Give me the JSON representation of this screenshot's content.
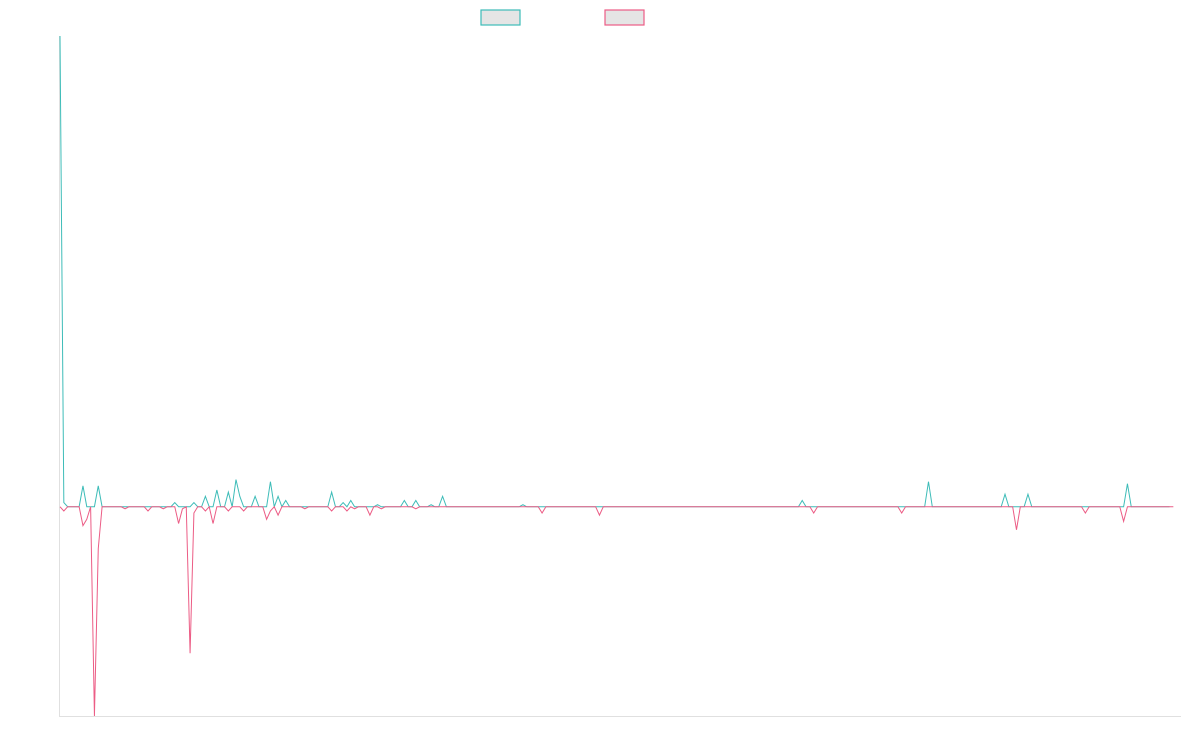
{
  "chart_data": {
    "type": "line",
    "title": "",
    "xlabel": "",
    "ylabel": "",
    "legend": "top-center",
    "grid": false,
    "xlim": [
      0,
      293
    ],
    "ylim": [
      -100,
      225
    ],
    "series": [
      {
        "name": "",
        "color": "#3dbcb8",
        "values": [
          225,
          2,
          0,
          0,
          0,
          0,
          10,
          0,
          0,
          0,
          10,
          0,
          0,
          0,
          0,
          0,
          0,
          0,
          0,
          0,
          0,
          0,
          0,
          0,
          0,
          0,
          0,
          0,
          0,
          0,
          2,
          0,
          0,
          0,
          0,
          2,
          0,
          0,
          5,
          0,
          0,
          8,
          0,
          0,
          7,
          0,
          13,
          5,
          0,
          0,
          0,
          5,
          0,
          0,
          0,
          12,
          0,
          5,
          0,
          3,
          0,
          0,
          0,
          0,
          0,
          0,
          0,
          0,
          0,
          0,
          0,
          7,
          0,
          0,
          2,
          0,
          3,
          0,
          0,
          0,
          0,
          0,
          0,
          1,
          0,
          0,
          0,
          0,
          0,
          0,
          3,
          0,
          0,
          3,
          0,
          0,
          0,
          1,
          0,
          0,
          5,
          0,
          0,
          0,
          0,
          0,
          0,
          0,
          0,
          0,
          0,
          0,
          0,
          0,
          0,
          0,
          0,
          0,
          0,
          0,
          0,
          1,
          0,
          0,
          0,
          0,
          0,
          0,
          0,
          0,
          0,
          0,
          0,
          0,
          0,
          0,
          0,
          0,
          0,
          0,
          0,
          0,
          0,
          0,
          0,
          0,
          0,
          0,
          0,
          0,
          0,
          0,
          0,
          0,
          0,
          0,
          0,
          0,
          0,
          0,
          0,
          0,
          0,
          0,
          0,
          0,
          0,
          0,
          0,
          0,
          0,
          0,
          0,
          0,
          0,
          0,
          0,
          0,
          0,
          0,
          0,
          0,
          0,
          0,
          0,
          0,
          0,
          0,
          0,
          0,
          0,
          0,
          0,
          0,
          3,
          0,
          0,
          0,
          0,
          0,
          0,
          0,
          0,
          0,
          0,
          0,
          0,
          0,
          0,
          0,
          0,
          0,
          0,
          0,
          0,
          0,
          0,
          0,
          0,
          0,
          0,
          0,
          0,
          0,
          0,
          0,
          0,
          12,
          0,
          0,
          0,
          0,
          0,
          0,
          0,
          0,
          0,
          0,
          0,
          0,
          0,
          0,
          0,
          0,
          0,
          0,
          0,
          6,
          0,
          0,
          0,
          0,
          0,
          6,
          0,
          0,
          0,
          0,
          0,
          0,
          0,
          0,
          0,
          0,
          0,
          0,
          0,
          0,
          0,
          0,
          0,
          0,
          0,
          0,
          0,
          0,
          0,
          0,
          0,
          11,
          0,
          0,
          0,
          0,
          0,
          0,
          0,
          0,
          0,
          0,
          0
        ]
      },
      {
        "name": "",
        "color": "#ec5c85",
        "values": [
          0,
          -2,
          0,
          0,
          0,
          0,
          -9,
          -6,
          0,
          -100,
          -20,
          0,
          0,
          0,
          0,
          0,
          0,
          -1,
          0,
          0,
          0,
          0,
          0,
          -2,
          0,
          0,
          0,
          -1,
          0,
          0,
          0,
          -8,
          -1,
          0,
          -70,
          -3,
          0,
          0,
          -2,
          0,
          -8,
          0,
          0,
          0,
          -2,
          0,
          0,
          0,
          -2,
          0,
          0,
          0,
          0,
          0,
          -6,
          -2,
          0,
          -4,
          0,
          0,
          0,
          0,
          0,
          0,
          -1,
          0,
          0,
          0,
          0,
          0,
          0,
          -2,
          0,
          0,
          0,
          -2,
          0,
          -1,
          0,
          0,
          0,
          -4,
          0,
          0,
          -1,
          0,
          0,
          0,
          0,
          0,
          0,
          0,
          0,
          -1,
          0,
          0,
          0,
          0,
          0,
          0,
          0,
          0,
          0,
          0,
          0,
          0,
          0,
          0,
          0,
          0,
          0,
          0,
          0,
          0,
          0,
          0,
          0,
          0,
          0,
          0,
          0,
          0,
          0,
          0,
          0,
          0,
          -3,
          0,
          0,
          0,
          0,
          0,
          0,
          0,
          0,
          0,
          0,
          0,
          0,
          0,
          0,
          -4,
          0,
          0,
          0,
          0,
          0,
          0,
          0,
          0,
          0,
          0,
          0,
          0,
          0,
          0,
          0,
          0,
          0,
          0,
          0,
          0,
          0,
          0,
          0,
          0,
          0,
          0,
          0,
          0,
          0,
          0,
          0,
          0,
          0,
          0,
          0,
          0,
          0,
          0,
          0,
          0,
          0,
          0,
          0,
          0,
          0,
          0,
          0,
          0,
          0,
          0,
          0,
          0,
          0,
          0,
          0,
          -3,
          0,
          0,
          0,
          0,
          0,
          0,
          0,
          0,
          0,
          0,
          0,
          0,
          0,
          0,
          0,
          0,
          0,
          0,
          0,
          0,
          0,
          0,
          -3,
          0,
          0,
          0,
          0,
          0,
          0,
          0,
          0,
          0,
          0,
          0,
          0,
          0,
          0,
          0,
          0,
          0,
          0,
          0,
          0,
          0,
          0,
          0,
          0,
          0,
          0,
          0,
          0,
          0,
          -11,
          0,
          0,
          0,
          0,
          0,
          0,
          0,
          0,
          0,
          0,
          0,
          0,
          0,
          0,
          0,
          0,
          0,
          -3,
          0,
          0,
          0,
          0,
          0,
          0,
          0,
          0,
          0,
          -7,
          0,
          0,
          0,
          0,
          0,
          0,
          0,
          0,
          0,
          0,
          0,
          0,
          0
        ]
      }
    ]
  }
}
